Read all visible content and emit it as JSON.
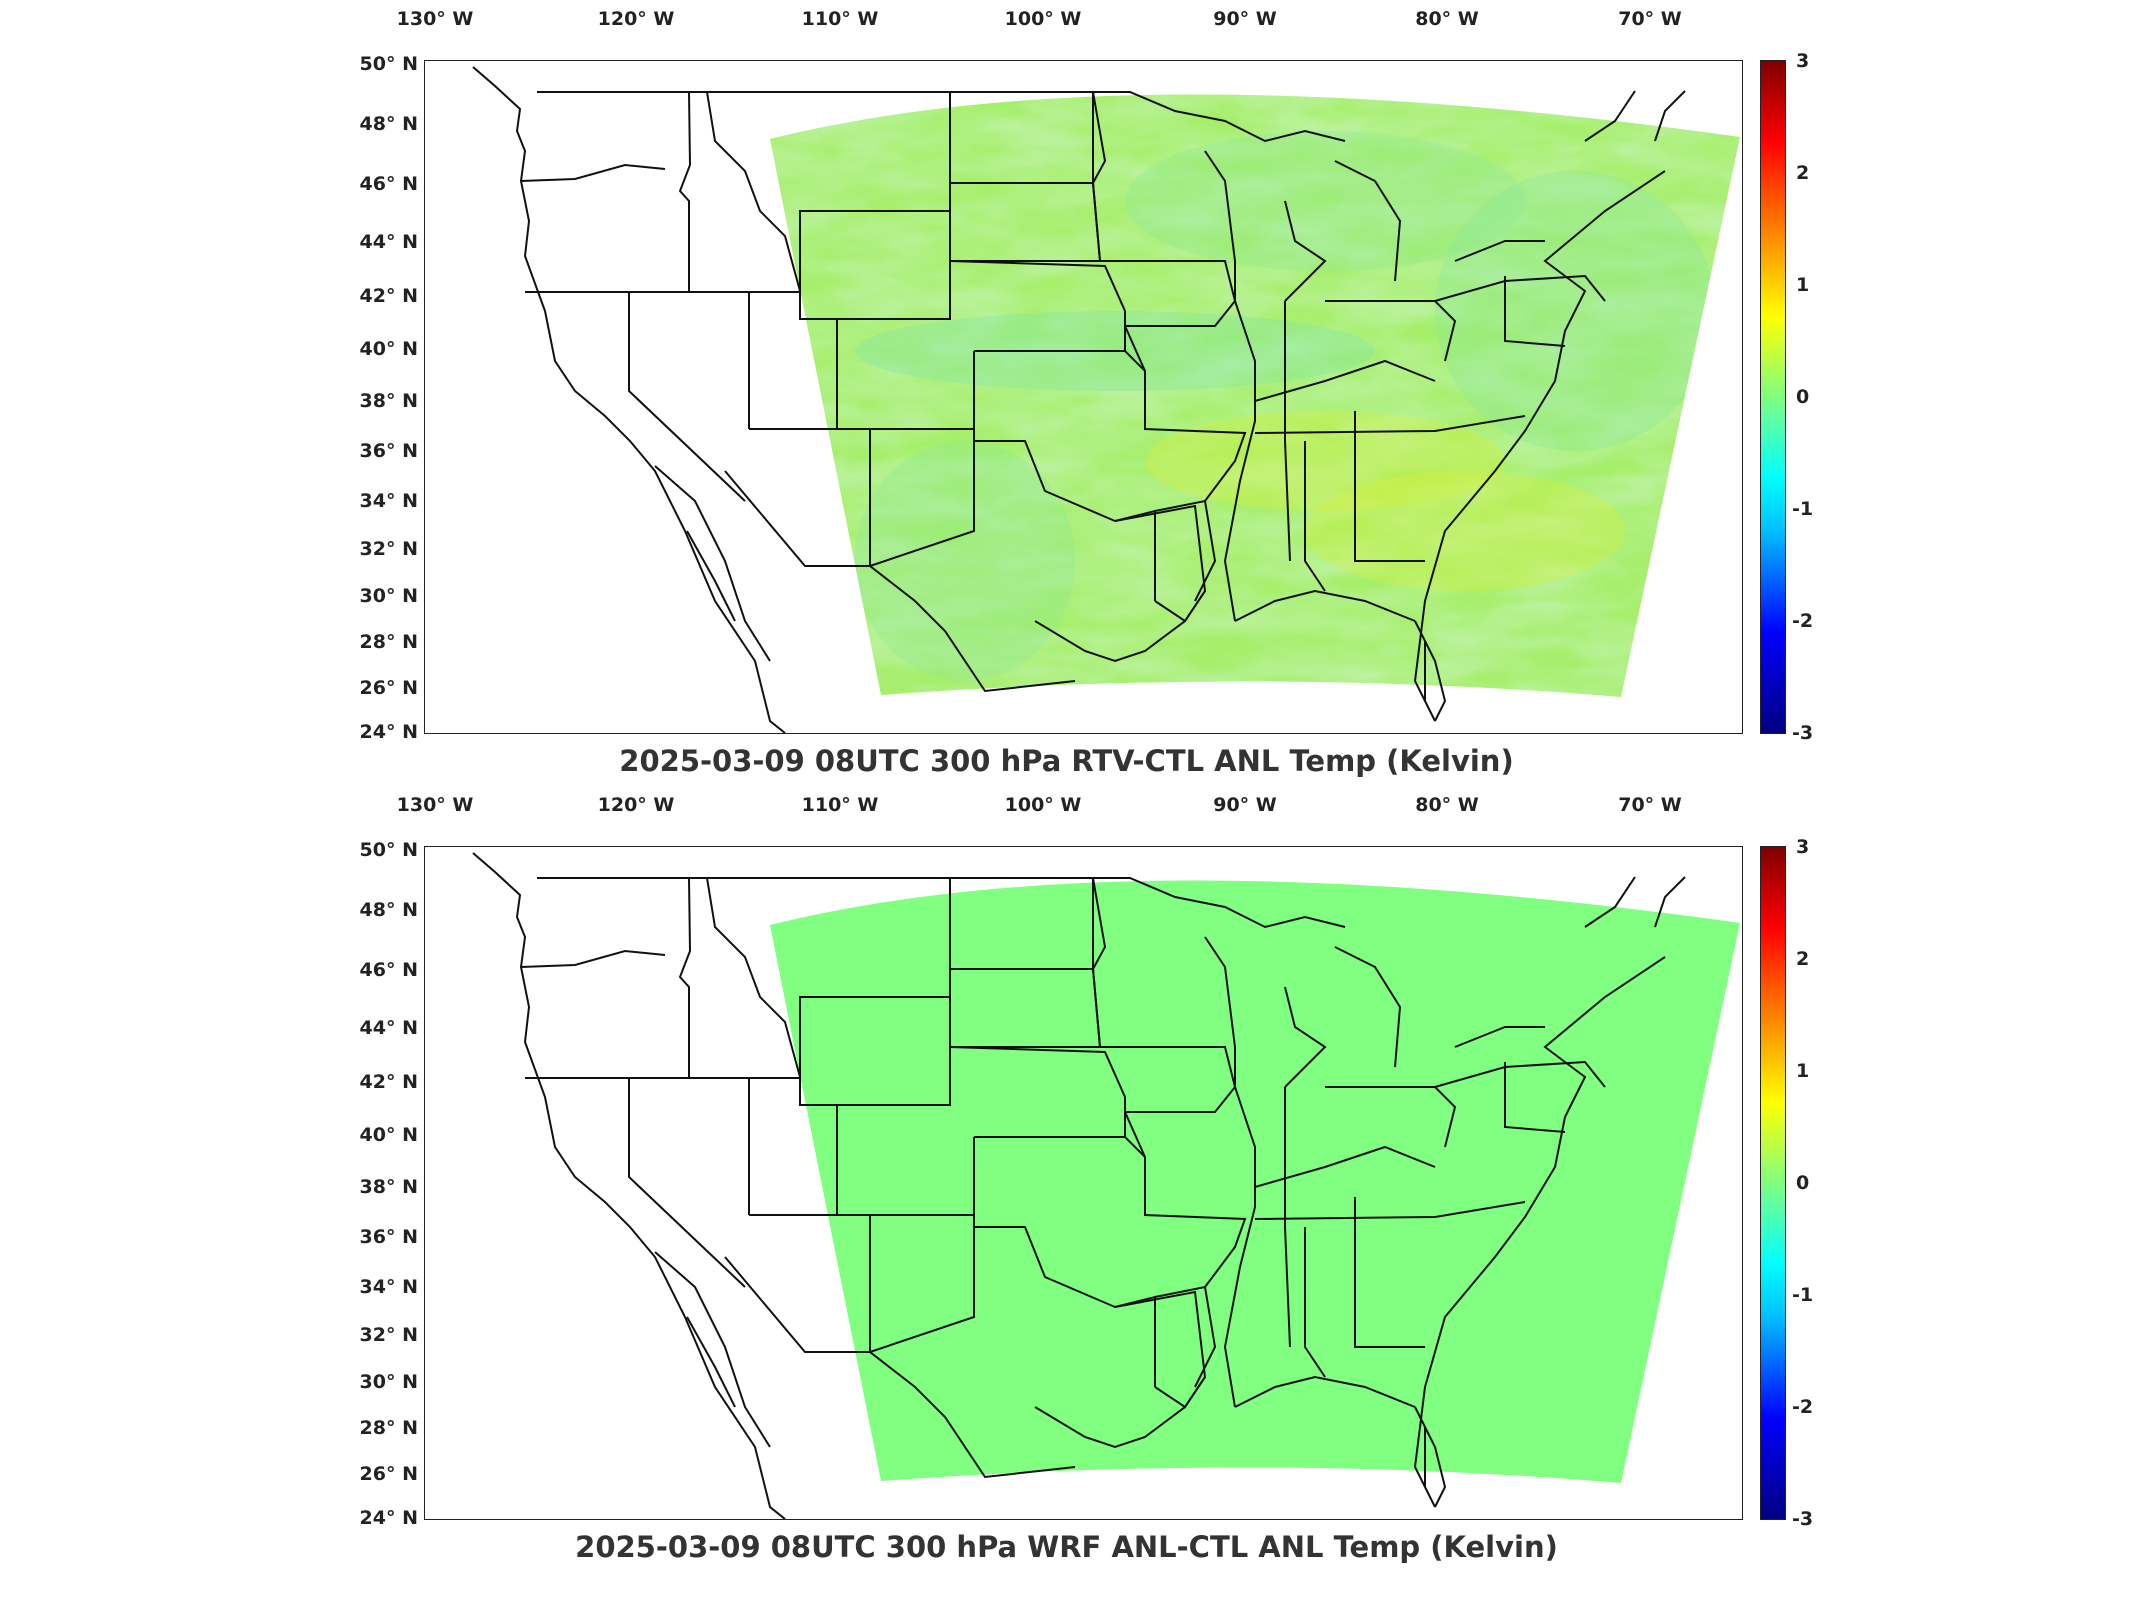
{
  "colors": {
    "colormap": [
      "#000080",
      "#0000ff",
      "#00bfff",
      "#00ffff",
      "#80ff80",
      "#ffff00",
      "#ff8000",
      "#ff0000",
      "#800000"
    ],
    "top_field_base": "#a6ef6a",
    "top_field_variation": [
      "#b8f05a",
      "#8ae89a",
      "#c8f04a",
      "#7fe6ad",
      "#d6f23a"
    ],
    "bottom_field": "#80ff80",
    "coastline": "#111111"
  },
  "panels": [
    {
      "id": "top",
      "title": "2025-03-09 08UTC 300 hPa RTV-CTL ANL Temp (Kelvin)",
      "lon_labels": [
        "130° W",
        "120° W",
        "110° W",
        "100° W",
        "90° W",
        "80° W",
        "70° W"
      ],
      "lat_labels": [
        "50° N",
        "48° N",
        "46° N",
        "44° N",
        "42° N",
        "40° N",
        "38° N",
        "36° N",
        "34° N",
        "32° N",
        "30° N",
        "28° N",
        "26° N",
        "24° N"
      ],
      "colorbar_ticks": [
        "3",
        "2",
        "1",
        "0",
        "-1",
        "-2",
        "-3"
      ],
      "colorbar_range": [
        -3,
        3
      ],
      "field": "variable"
    },
    {
      "id": "bottom",
      "title": "2025-03-09 08UTC 300 hPa WRF ANL-CTL ANL Temp (Kelvin)",
      "lon_labels": [
        "130° W",
        "120° W",
        "110° W",
        "100° W",
        "90° W",
        "80° W",
        "70° W"
      ],
      "lat_labels": [
        "50° N",
        "48° N",
        "46° N",
        "44° N",
        "42° N",
        "40° N",
        "38° N",
        "36° N",
        "34° N",
        "32° N",
        "30° N",
        "28° N",
        "26° N",
        "24° N"
      ],
      "colorbar_ticks": [
        "3",
        "2",
        "1",
        "0",
        "-1",
        "-2",
        "-3"
      ],
      "colorbar_range": [
        -3,
        3
      ],
      "field": "uniform"
    }
  ]
}
